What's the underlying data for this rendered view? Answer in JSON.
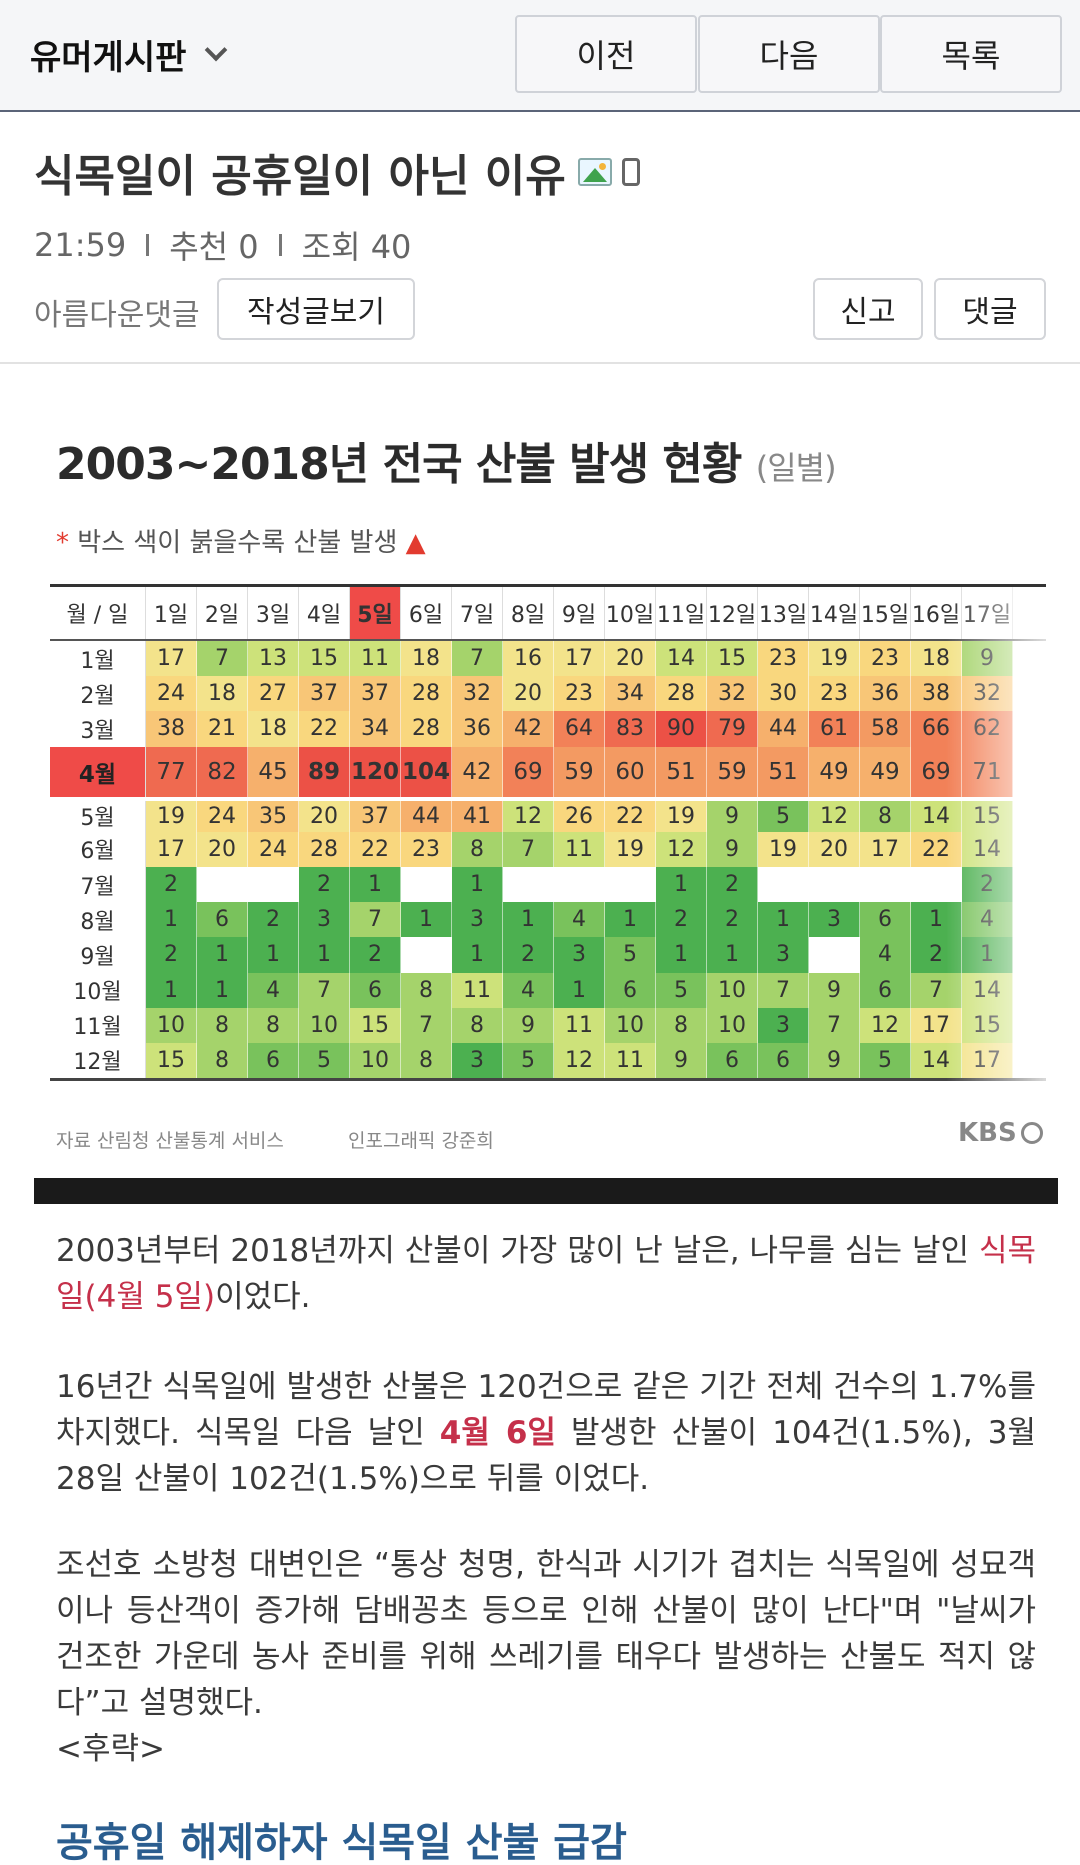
{
  "nav": {
    "board_title": "유머게시판",
    "prev_label": "이전",
    "next_label": "다음",
    "list_label": "목록"
  },
  "post": {
    "title": "식목일이 공휴일이 아닌 이유",
    "time": "21:59",
    "recommend": "추천 0",
    "views": "조회 40",
    "author": "아름다운댓글",
    "view_posts_label": "작성글보기",
    "report_label": "신고",
    "comment_label": "댓글"
  },
  "infographic": {
    "title": "2003~2018년 전국 산불 발생 현황",
    "title_sub": "(일별)",
    "note": "박스 색이 붉을수록 산불 발생",
    "corner_label": "월 / 일",
    "day_headers": [
      "1일",
      "2일",
      "3일",
      "4일",
      "5일",
      "6일",
      "7일",
      "8일",
      "9일",
      "10일",
      "11일",
      "12일",
      "13일",
      "14일",
      "15일",
      "16일",
      "17일"
    ],
    "months": [
      {
        "label": "1월",
        "values": [
          "17",
          "7",
          "13",
          "15",
          "11",
          "18",
          "7",
          "16",
          "17",
          "20",
          "14",
          "15",
          "23",
          "19",
          "23",
          "18",
          "9"
        ]
      },
      {
        "label": "2월",
        "values": [
          "24",
          "18",
          "27",
          "37",
          "37",
          "28",
          "32",
          "20",
          "23",
          "34",
          "28",
          "32",
          "30",
          "23",
          "36",
          "38",
          "32"
        ]
      },
      {
        "label": "3월",
        "values": [
          "38",
          "21",
          "18",
          "22",
          "34",
          "28",
          "36",
          "42",
          "64",
          "83",
          "90",
          "79",
          "44",
          "61",
          "58",
          "66",
          "62"
        ]
      },
      {
        "label": "4월",
        "values": [
          "77",
          "82",
          "45",
          "89",
          "120",
          "104",
          "42",
          "69",
          "59",
          "60",
          "51",
          "59",
          "51",
          "49",
          "49",
          "69",
          "71"
        ]
      },
      {
        "label": "5월",
        "values": [
          "19",
          "24",
          "35",
          "20",
          "37",
          "44",
          "41",
          "12",
          "26",
          "22",
          "19",
          "9",
          "5",
          "12",
          "8",
          "14",
          "15"
        ]
      },
      {
        "label": "6월",
        "values": [
          "17",
          "20",
          "24",
          "28",
          "22",
          "23",
          "8",
          "7",
          "11",
          "19",
          "12",
          "9",
          "19",
          "20",
          "17",
          "22",
          "14"
        ]
      },
      {
        "label": "7월",
        "values": [
          "2",
          "",
          "",
          "2",
          "1",
          "",
          "1",
          "",
          "",
          "",
          "1",
          "2",
          "",
          "",
          "",
          "",
          "2"
        ]
      },
      {
        "label": "8월",
        "values": [
          "1",
          "6",
          "2",
          "3",
          "7",
          "1",
          "3",
          "1",
          "4",
          "1",
          "2",
          "2",
          "1",
          "3",
          "6",
          "1",
          "4"
        ]
      },
      {
        "label": "9월",
        "values": [
          "2",
          "1",
          "1",
          "1",
          "2",
          "",
          "1",
          "2",
          "3",
          "5",
          "1",
          "1",
          "3",
          "",
          "4",
          "2",
          "1"
        ]
      },
      {
        "label": "10월",
        "values": [
          "1",
          "1",
          "4",
          "7",
          "6",
          "8",
          "11",
          "4",
          "1",
          "6",
          "5",
          "10",
          "7",
          "9",
          "6",
          "7",
          "14"
        ]
      },
      {
        "label": "11월",
        "values": [
          "10",
          "8",
          "8",
          "10",
          "15",
          "7",
          "8",
          "9",
          "11",
          "10",
          "8",
          "10",
          "3",
          "7",
          "12",
          "17",
          "15"
        ]
      },
      {
        "label": "12월",
        "values": [
          "15",
          "8",
          "6",
          "5",
          "10",
          "8",
          "3",
          "5",
          "12",
          "11",
          "9",
          "6",
          "6",
          "9",
          "5",
          "14",
          "17"
        ]
      }
    ],
    "source": "자료 산림청 산불통계 서비스",
    "graphic_credit": "인포그래픽 강준희",
    "logo": "KBS"
  },
  "article": {
    "p1_a": "2003년부터 2018년까지 산불이 가장 많이 난 날은, 나무를 심는 날인 ",
    "p1_hl": "식목일(4월 5일)",
    "p1_b": "이었다.",
    "p2_a": "16년간 식목일에 발생한 산불은 120건으로 같은 기간 전체 건수의 1.7%를 차지했다. 식목일 다음 날인 ",
    "p2_hl": "4월 6일",
    "p2_b": " 발생한 산불이 104건(1.5%), 3월 28일 산불이 102건(1.5%)으로 뒤를 이었다.",
    "p3": "조선호 소방청 대변인은 “통상 청명, 한식과 시기가 겹치는 식목일에 성묘객이나 등산객이 증가해 담배꽁초 등으로 인해 산불이 많이 난다\"며 \"날씨가 건조한 가운데 농사 준비를 위해 쓰레기를 태우다 발생하는 산불도 적지 않다”고 설명했다.",
    "p3_tail": "<후략>",
    "subheading": "공휴일 해제하자 식목일 산불 급감"
  }
}
